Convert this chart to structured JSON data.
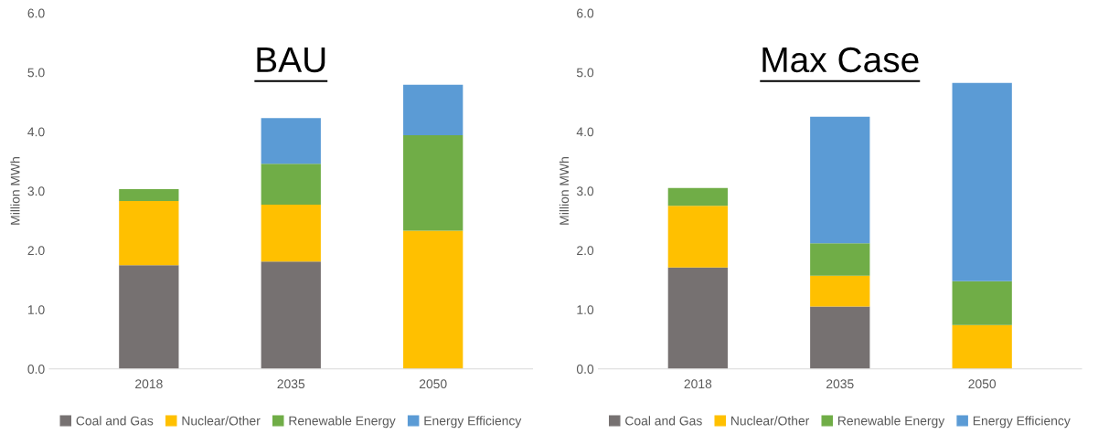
{
  "chart_data": [
    {
      "type": "bar",
      "title": "BAU",
      "ylabel": "Million MWh",
      "categories": [
        "2018",
        "2035",
        "2050"
      ],
      "stacked": true,
      "legend": "bottom",
      "ylim": [
        0,
        6
      ],
      "yticks": [
        {
          "value": 0,
          "label": "0.0"
        },
        {
          "value": 1,
          "label": "1.0"
        },
        {
          "value": 2,
          "label": "2.0"
        },
        {
          "value": 3,
          "label": "3.0"
        },
        {
          "value": 4,
          "label": "4.0"
        },
        {
          "value": 5,
          "label": "5.0"
        },
        {
          "value": 6,
          "label": "6.0"
        }
      ],
      "series": [
        {
          "name": "Coal and Gas",
          "color": "#767171",
          "values": [
            1.75,
            1.81,
            0
          ]
        },
        {
          "name": "Nuclear/Other",
          "color": "#ffc000",
          "values": [
            1.08,
            0.96,
            2.33
          ]
        },
        {
          "name": "Renewable Energy",
          "color": "#70ad47",
          "values": [
            0.2,
            0.69,
            1.61
          ]
        },
        {
          "name": "Energy Efficiency",
          "color": "#5b9bd5",
          "values": [
            0,
            0.77,
            0.85
          ]
        }
      ]
    },
    {
      "type": "bar",
      "title": "Max Case",
      "ylabel": "Million MWh",
      "categories": [
        "2018",
        "2035",
        "2050"
      ],
      "stacked": true,
      "legend": "bottom",
      "ylim": [
        0,
        6
      ],
      "yticks": [
        {
          "value": 0,
          "label": "0.0"
        },
        {
          "value": 1,
          "label": "1.0"
        },
        {
          "value": 2,
          "label": "2.0"
        },
        {
          "value": 3,
          "label": "3.0"
        },
        {
          "value": 4,
          "label": "4.0"
        },
        {
          "value": 5,
          "label": "5.0"
        },
        {
          "value": 6,
          "label": "6.0"
        }
      ],
      "series": [
        {
          "name": "Coal and Gas",
          "color": "#767171",
          "values": [
            1.71,
            1.05,
            0
          ]
        },
        {
          "name": "Nuclear/Other",
          "color": "#ffc000",
          "values": [
            1.04,
            0.52,
            0.74
          ]
        },
        {
          "name": "Renewable Energy",
          "color": "#70ad47",
          "values": [
            0.3,
            0.55,
            0.74
          ]
        },
        {
          "name": "Energy Efficiency",
          "color": "#5b9bd5",
          "values": [
            0,
            2.13,
            3.34
          ]
        }
      ]
    }
  ]
}
